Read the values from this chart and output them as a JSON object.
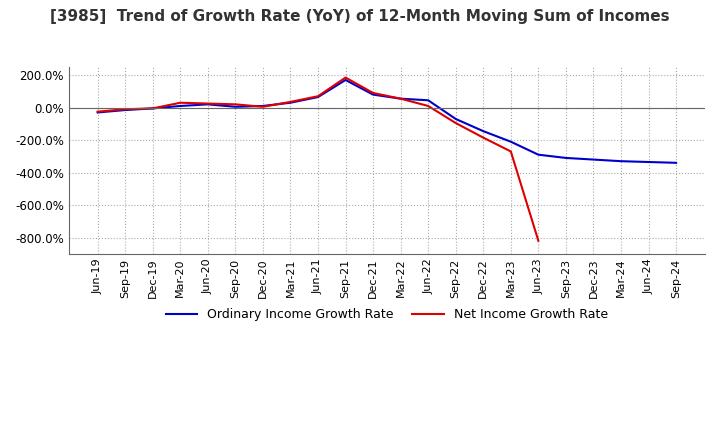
{
  "title": "[3985]  Trend of Growth Rate (YoY) of 12-Month Moving Sum of Incomes",
  "title_fontsize": 11,
  "ylim": [
    -900,
    250
  ],
  "yticks": [
    200,
    0,
    -200,
    -400,
    -600,
    -800
  ],
  "background_color": "#ffffff",
  "grid_color": "#aaaaaa",
  "ordinary_color": "#0000cc",
  "net_color": "#dd0000",
  "legend_labels": [
    "Ordinary Income Growth Rate",
    "Net Income Growth Rate"
  ],
  "dates": [
    "Jun-19",
    "Sep-19",
    "Dec-19",
    "Mar-20",
    "Jun-20",
    "Sep-20",
    "Dec-20",
    "Mar-21",
    "Jun-21",
    "Sep-21",
    "Dec-21",
    "Mar-22",
    "Jun-22",
    "Sep-22",
    "Dec-22",
    "Mar-23",
    "Jun-23",
    "Sep-23",
    "Dec-23",
    "Mar-24",
    "Jun-24",
    "Sep-24"
  ],
  "ordinary_values": [
    -30,
    -15,
    -5,
    10,
    20,
    5,
    10,
    30,
    65,
    170,
    80,
    55,
    45,
    -70,
    -145,
    -210,
    -290,
    -310,
    -320,
    -330,
    -335,
    -340
  ],
  "net_values": [
    -25,
    -10,
    -5,
    30,
    25,
    20,
    5,
    35,
    70,
    185,
    90,
    55,
    10,
    -95,
    -185,
    -270,
    -820,
    null,
    null,
    null,
    null,
    null
  ]
}
